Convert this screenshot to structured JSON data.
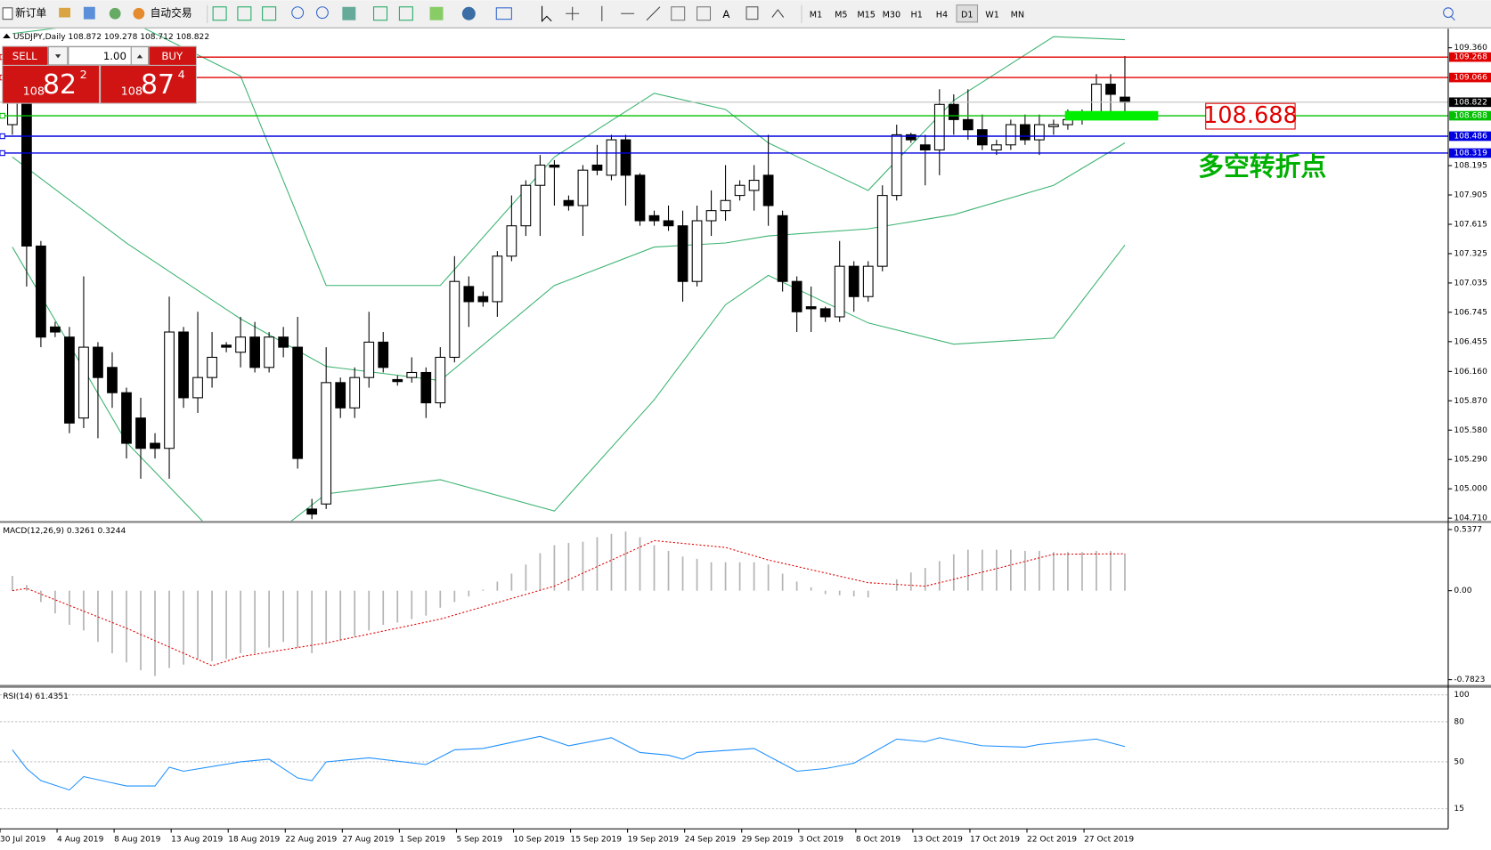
{
  "toolbar": {
    "buttons": [
      "新订单",
      "自动交易"
    ],
    "timeframes": [
      "M1",
      "M5",
      "M15",
      "M30",
      "H1",
      "H4",
      "D1",
      "W1",
      "MN"
    ],
    "active": "D1"
  },
  "trade_panel": {
    "sell": "SELL",
    "buy": "BUY",
    "volume": "1.00",
    "bid": {
      "big": "108",
      "pips": "82",
      "frac": "2"
    },
    "ask": {
      "big": "108",
      "pips": "87",
      "frac": "4"
    }
  },
  "chart_data": [
    {
      "type": "candlestick",
      "title": "USDJPY,Daily",
      "open": [
        108.6,
        109.0,
        107.4,
        106.6,
        106.5,
        105.7,
        106.4,
        106.2,
        105.95,
        105.7,
        105.45,
        105.4,
        106.55,
        105.9,
        106.1,
        106.42,
        106.35,
        106.5,
        106.2,
        106.5,
        106.4,
        104.8,
        104.85,
        106.05,
        105.8,
        106.1,
        106.45,
        106.08,
        106.1,
        106.15,
        105.85,
        106.3,
        107.0,
        106.9,
        106.85,
        107.3,
        107.6,
        108.0,
        108.2,
        107.85,
        107.8,
        108.2,
        108.1,
        108.45,
        108.1,
        107.7,
        107.65,
        107.6,
        107.05,
        107.65,
        107.75,
        107.9,
        107.95,
        108.1,
        107.7,
        107.05,
        106.8,
        106.78,
        106.7,
        107.2,
        106.9,
        107.2,
        107.9,
        108.5,
        108.4,
        108.35,
        108.8,
        108.65,
        108.55,
        108.35,
        108.4,
        108.6,
        108.45,
        108.58,
        108.6,
        108.65,
        108.7,
        109.0,
        108.872
      ],
      "high": [
        109.3,
        109.05,
        107.45,
        106.65,
        106.6,
        107.1,
        106.45,
        106.35,
        106.0,
        105.9,
        105.55,
        106.9,
        106.6,
        106.75,
        106.55,
        106.45,
        106.7,
        106.65,
        106.55,
        106.6,
        106.7,
        104.9,
        106.4,
        106.1,
        106.2,
        106.75,
        106.55,
        106.12,
        106.3,
        106.2,
        106.4,
        107.3,
        107.1,
        106.95,
        107.35,
        107.9,
        108.05,
        108.3,
        108.25,
        107.9,
        108.2,
        108.4,
        108.5,
        108.5,
        108.12,
        107.75,
        107.8,
        107.75,
        107.8,
        107.95,
        108.2,
        108.05,
        108.2,
        108.5,
        107.75,
        107.1,
        107.0,
        106.8,
        107.45,
        107.25,
        107.25,
        108.0,
        108.6,
        108.52,
        108.5,
        108.95,
        108.9,
        108.95,
        108.7,
        108.45,
        108.65,
        108.7,
        108.7,
        108.65,
        108.75,
        108.75,
        109.1,
        109.1,
        109.278
      ],
      "low": [
        108.5,
        107.0,
        106.4,
        106.5,
        105.55,
        105.6,
        105.5,
        105.8,
        105.3,
        105.1,
        105.3,
        105.1,
        105.8,
        105.75,
        106.0,
        106.35,
        106.2,
        106.15,
        106.15,
        106.3,
        105.2,
        104.7,
        104.8,
        105.7,
        105.7,
        106.0,
        106.15,
        106.02,
        106.05,
        105.7,
        105.8,
        106.25,
        106.6,
        106.8,
        106.7,
        107.25,
        107.5,
        107.5,
        107.8,
        107.75,
        107.5,
        108.1,
        108.05,
        107.8,
        107.6,
        107.6,
        107.55,
        106.85,
        107.0,
        107.5,
        107.65,
        107.85,
        107.75,
        107.6,
        106.95,
        106.55,
        106.55,
        106.65,
        106.65,
        106.75,
        106.85,
        107.15,
        107.85,
        108.42,
        108.0,
        108.1,
        108.5,
        108.45,
        108.35,
        108.3,
        108.35,
        108.4,
        108.3,
        108.5,
        108.55,
        108.6,
        108.65,
        108.7,
        108.712
      ],
      "close": [
        109.25,
        107.4,
        106.5,
        106.55,
        105.65,
        106.4,
        106.1,
        105.95,
        105.45,
        105.4,
        105.4,
        106.55,
        105.9,
        106.1,
        106.3,
        106.4,
        106.5,
        106.2,
        106.5,
        106.4,
        105.3,
        104.75,
        106.05,
        105.8,
        106.1,
        106.45,
        106.2,
        106.06,
        106.15,
        105.85,
        106.3,
        107.05,
        106.85,
        106.85,
        107.3,
        107.6,
        108.0,
        108.2,
        108.18,
        107.8,
        108.15,
        108.15,
        108.45,
        108.1,
        107.65,
        107.65,
        107.6,
        107.05,
        107.65,
        107.75,
        107.85,
        108.0,
        108.05,
        107.8,
        107.05,
        106.75,
        106.78,
        106.7,
        107.2,
        106.9,
        107.2,
        107.9,
        108.5,
        108.45,
        108.35,
        108.8,
        108.65,
        108.55,
        108.4,
        108.4,
        108.6,
        108.45,
        108.6,
        108.6,
        108.65,
        108.7,
        109.0,
        108.9,
        108.822
      ],
      "bands": {
        "x": [
          0,
          8,
          16,
          22,
          30,
          38,
          45,
          50,
          53,
          60,
          66,
          73,
          78
        ],
        "color": "#3cb371",
        "upper": [
          109.5,
          109.64,
          109.08,
          107.01,
          107.01,
          108.28,
          108.91,
          108.75,
          108.42,
          107.95,
          108.84,
          109.47,
          109.44
        ],
        "middle": [
          108.28,
          107.43,
          106.68,
          106.21,
          106.07,
          107.01,
          107.39,
          107.43,
          107.5,
          107.57,
          107.71,
          108.0,
          108.42
        ],
        "lower": [
          107.39,
          105.46,
          104.29,
          104.95,
          105.09,
          104.78,
          105.88,
          106.82,
          107.11,
          106.64,
          106.43,
          106.49,
          107.41
        ]
      },
      "levels": [
        {
          "value": 109.268,
          "color": "#e00000"
        },
        {
          "value": 109.066,
          "color": "#e00000"
        },
        {
          "value": 108.688,
          "color": "#00c000"
        },
        {
          "value": 108.486,
          "color": "#0000e0"
        },
        {
          "value": 108.319,
          "color": "#0000e0"
        }
      ],
      "current_price": 108.822,
      "annotation": {
        "price": 108.688,
        "highlight_color": "#00ee00",
        "text": "多空转折点",
        "text_color": "#00b000"
      },
      "ylim": [
        104.682,
        109.548
      ],
      "yticks": [
        {
          "value": 109.36,
          "label": "109.360"
        },
        108.195,
        107.905,
        107.615,
        107.325,
        107.035,
        106.745,
        106.455,
        {
          "value": 106.16,
          "label": "106.160"
        },
        {
          "value": 105.87,
          "label": "105.870"
        },
        {
          "value": 105.58,
          "label": "105.580"
        },
        {
          "value": 105.29,
          "label": "105.290"
        },
        {
          "value": 105.0,
          "label": "105.000"
        },
        {
          "value": 104.71,
          "label": "104.710"
        }
      ],
      "xlim": [
        -0.87,
        100.6
      ],
      "xticks": [
        {
          "value": 0,
          "label": "30 Jul 2019"
        },
        {
          "value": 4,
          "label": "4 Aug 2019"
        },
        {
          "value": 8,
          "label": "8 Aug 2019"
        },
        {
          "value": 12,
          "label": "13 Aug 2019"
        },
        {
          "value": 16,
          "label": "18 Aug 2019"
        },
        {
          "value": 20,
          "label": "22 Aug 2019"
        },
        {
          "value": 24,
          "label": "27 Aug 2019"
        },
        {
          "value": 28,
          "label": "1 Sep 2019"
        },
        {
          "value": 32,
          "label": "5 Sep 2019"
        },
        {
          "value": 36,
          "label": "10 Sep 2019"
        },
        {
          "value": 40,
          "label": "15 Sep 2019"
        },
        {
          "value": 44,
          "label": "19 Sep 2019"
        },
        {
          "value": 48,
          "label": "24 Sep 2019"
        },
        {
          "value": 52,
          "label": "29 Sep 2019"
        },
        {
          "value": 56,
          "label": "3 Oct 2019"
        },
        {
          "value": 60,
          "label": "8 Oct 2019"
        },
        {
          "value": 64,
          "label": "13 Oct 2019"
        },
        {
          "value": 68,
          "label": "17 Oct 2019"
        },
        {
          "value": 72,
          "label": "22 Oct 2019"
        },
        {
          "value": 76,
          "label": "27 Oct 2019"
        }
      ]
    },
    {
      "type": "macd",
      "title": "MACD(12,26,9)",
      "color": "#b4b4b4",
      "values": [
        0.13,
        0.05,
        -0.1,
        -0.2,
        -0.3,
        -0.35,
        -0.45,
        -0.55,
        -0.63,
        -0.7,
        -0.75,
        -0.68,
        -0.65,
        -0.6,
        -0.62,
        -0.6,
        -0.55,
        -0.55,
        -0.5,
        -0.45,
        -0.5,
        -0.55,
        -0.45,
        -0.43,
        -0.4,
        -0.35,
        -0.3,
        -0.28,
        -0.25,
        -0.22,
        -0.15,
        -0.1,
        -0.05,
        0.01,
        0.08,
        0.15,
        0.23,
        0.33,
        0.4,
        0.42,
        0.43,
        0.47,
        0.5,
        0.52,
        0.47,
        0.4,
        0.35,
        0.3,
        0.28,
        0.25,
        0.25,
        0.25,
        0.25,
        0.23,
        0.15,
        0.08,
        0.03,
        -0.03,
        -0.04,
        -0.05,
        -0.06,
        0.0,
        0.1,
        0.16,
        0.2,
        0.26,
        0.32,
        0.36,
        0.36,
        0.36,
        0.36,
        0.35,
        0.35,
        0.34,
        0.34,
        0.34,
        0.35,
        0.35,
        0.3261
      ],
      "signal": {
        "x": [
          0,
          1,
          8,
          14,
          16,
          22,
          30,
          38,
          45,
          50,
          53,
          60,
          64,
          66,
          73,
          78
        ],
        "values": [
          0.0,
          0.02,
          -0.33,
          -0.66,
          -0.58,
          -0.46,
          -0.25,
          0.04,
          0.44,
          0.38,
          0.27,
          0.07,
          0.04,
          0.1,
          0.32,
          0.3244
        ],
        "color": "#e00000"
      },
      "ylim": [
        -0.7823,
        0.5377
      ],
      "yticks": [
        0.5377,
        {
          "value": 0,
          "label": "0.00"
        },
        -0.7823
      ]
    },
    {
      "type": "rsi",
      "title": "RSI(14)",
      "color": "#1e90ff",
      "x": [
        0,
        1,
        2,
        4,
        5,
        8,
        10,
        11,
        12,
        16,
        18,
        20,
        21,
        22,
        25,
        29,
        31,
        33,
        37,
        39,
        42,
        44,
        46,
        47,
        48,
        52,
        55,
        57,
        59,
        62,
        64,
        65,
        68,
        71,
        72,
        76,
        78
      ],
      "values": [
        59,
        45,
        36,
        29,
        39,
        32,
        32,
        46,
        43,
        50,
        52,
        38,
        36,
        50,
        53,
        48,
        59,
        60,
        69,
        62,
        68,
        57,
        55,
        52,
        57,
        60,
        43,
        45,
        49,
        67,
        65,
        68,
        62,
        61,
        63,
        67,
        61.4351
      ],
      "ylim": [
        0,
        100
      ],
      "yticks": [
        100,
        80,
        50,
        15
      ]
    }
  ]
}
